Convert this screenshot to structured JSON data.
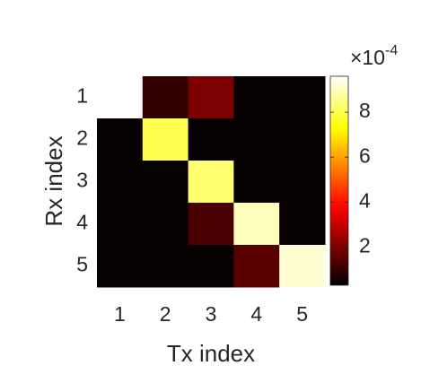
{
  "chart_data": {
    "type": "heatmap",
    "x_label": "Tx index",
    "y_label": "Rx index",
    "x_categories": [
      "1",
      "2",
      "3",
      "4",
      "5"
    ],
    "y_categories": [
      "1",
      "2",
      "3",
      "4",
      "5"
    ],
    "values": [
      [
        9.6,
        1.0,
        2.0,
        0.4,
        0.4
      ],
      [
        0.4,
        8.0,
        0.4,
        0.4,
        0.4
      ],
      [
        0.4,
        0.4,
        8.3,
        0.4,
        0.4
      ],
      [
        0.4,
        0.4,
        1.3,
        9.0,
        0.4
      ],
      [
        0.4,
        0.4,
        0.4,
        1.5,
        9.2
      ]
    ],
    "colormap": "hot",
    "clim": [
      0.3,
      9.6
    ],
    "colorbar_ticks": [
      2,
      4,
      6,
      8
    ],
    "colorbar_multiplier": "×10",
    "colorbar_exponent": "-4"
  }
}
